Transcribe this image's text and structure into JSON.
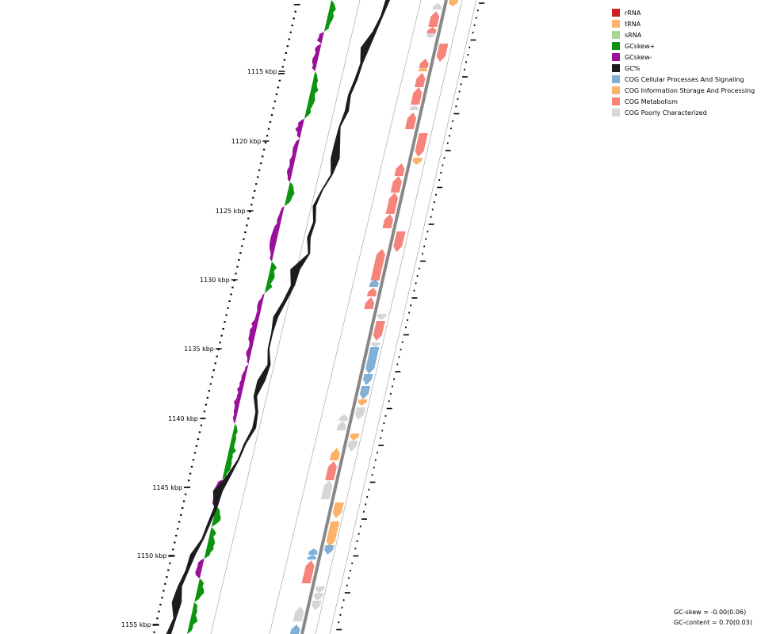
{
  "colors": {
    "rrna": "#cc1f1f",
    "trna": "#fbb36a",
    "srna": "#a9d79a",
    "gcskew_pos": "#0c9410",
    "gcskew_neg": "#9a1099",
    "gc_content": "#1c1c1c",
    "cog_cellular": "#80b0d6",
    "cog_information": "#fbb36a",
    "cog_metabolism": "#f6847a",
    "cog_poorly": "#d6d6d6",
    "backbone": "#888888"
  },
  "legend": {
    "items": [
      {
        "label": "rRNA",
        "color": "#cc1f1f"
      },
      {
        "label": "tRNA",
        "color": "#fbb36a"
      },
      {
        "label": "sRNA",
        "color": "#a9d79a"
      },
      {
        "label": "GCskew+",
        "color": "#0c9410"
      },
      {
        "label": "GCskew-",
        "color": "#9a1099"
      },
      {
        "label": "GC%",
        "color": "#1c1c1c"
      },
      {
        "label": "COG Cellular Processes And Signaling",
        "color": "#80b0d6"
      },
      {
        "label": "COG Information Storage And Processing",
        "color": "#fbb36a"
      },
      {
        "label": "COG Metabolism",
        "color": "#f6847a"
      },
      {
        "label": "COG Poorly Characterized",
        "color": "#d6d6d6"
      }
    ]
  },
  "axis": {
    "unit": "kbp",
    "labels": [
      "1115 kbp",
      "1120 kbp",
      "1125 kbp",
      "1130 kbp",
      "1135 kbp",
      "1140 kbp",
      "1145 kbp",
      "1150 kbp",
      "1155 kbp"
    ]
  },
  "stats": {
    "gc_skew": "GC-skew = -0.00(0.06)",
    "gc_content": "GC-content = 0.70(0.03)"
  }
}
